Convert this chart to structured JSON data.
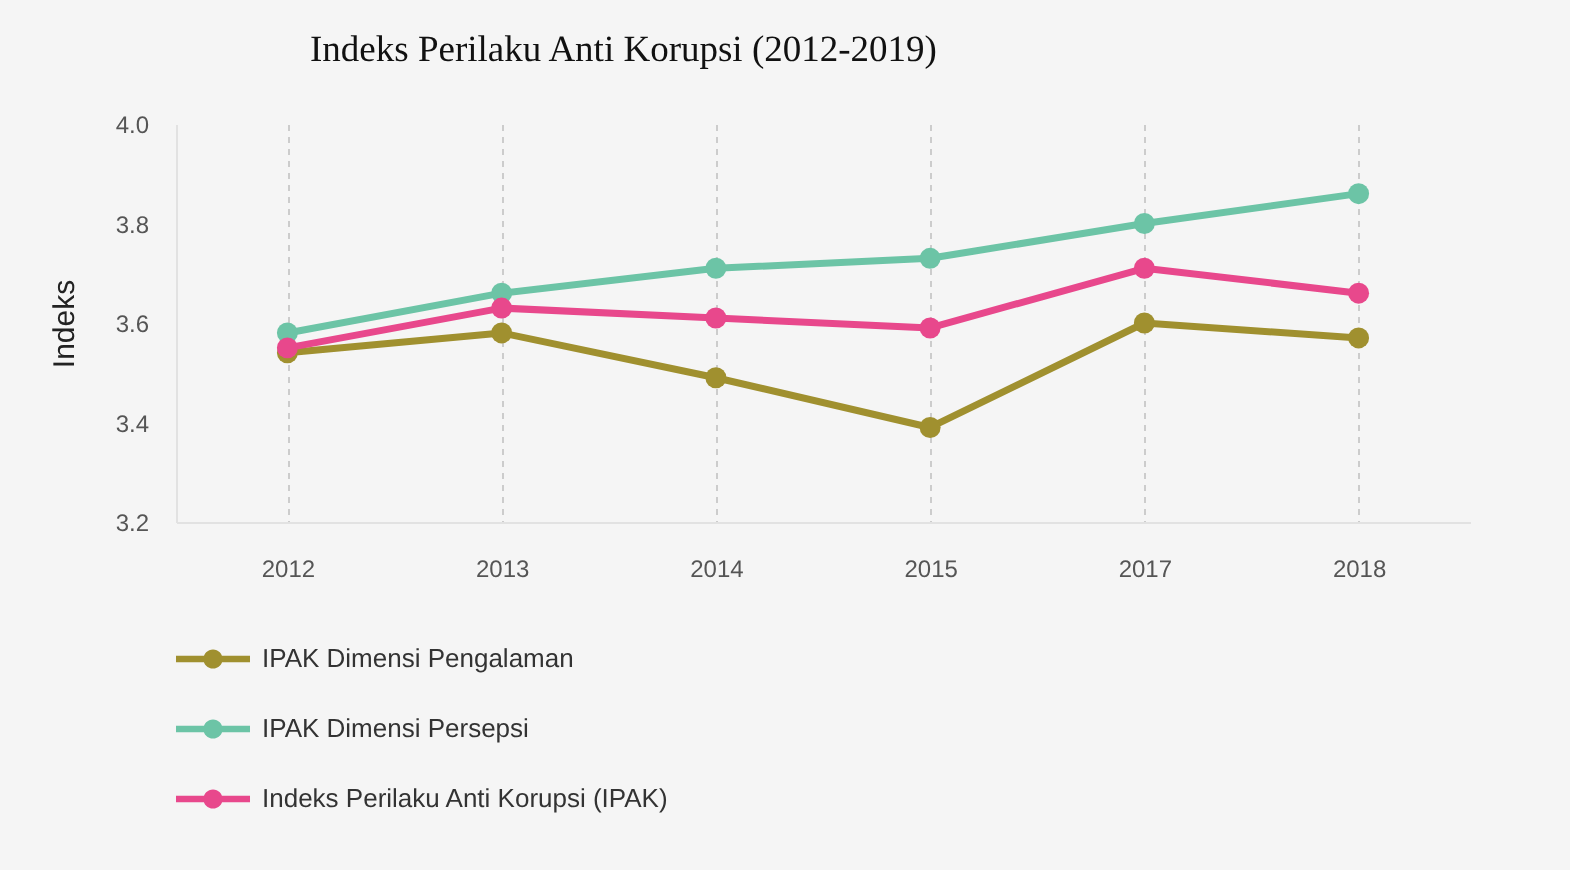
{
  "chart_data": {
    "type": "line",
    "title": "Indeks Perilaku Anti Korupsi (2012-2019)",
    "ylabel": "Indeks",
    "categories": [
      "2012",
      "2013",
      "2014",
      "2015",
      "2017",
      "2018"
    ],
    "series": [
      {
        "name": "IPAK Dimensi Pengalaman",
        "color": "#a0902f",
        "values": [
          3.54,
          3.58,
          3.49,
          3.39,
          3.6,
          3.57
        ]
      },
      {
        "name": "IPAK Dimensi Persepsi",
        "color": "#6cc4a6",
        "values": [
          3.58,
          3.66,
          3.71,
          3.73,
          3.8,
          3.86
        ]
      },
      {
        "name": "Indeks Perilaku Anti Korupsi (IPAK)",
        "color": "#e8488c",
        "values": [
          3.55,
          3.63,
          3.61,
          3.59,
          3.71,
          3.66
        ]
      }
    ],
    "ylim": [
      3.2,
      4.0
    ],
    "yticks": [
      3.2,
      3.4,
      3.6,
      3.8,
      {
        "value": 4,
        "label": "4.0"
      }
    ],
    "grid": "x",
    "legend": "bottom left",
    "marker": "circle",
    "line_style": "solid"
  }
}
